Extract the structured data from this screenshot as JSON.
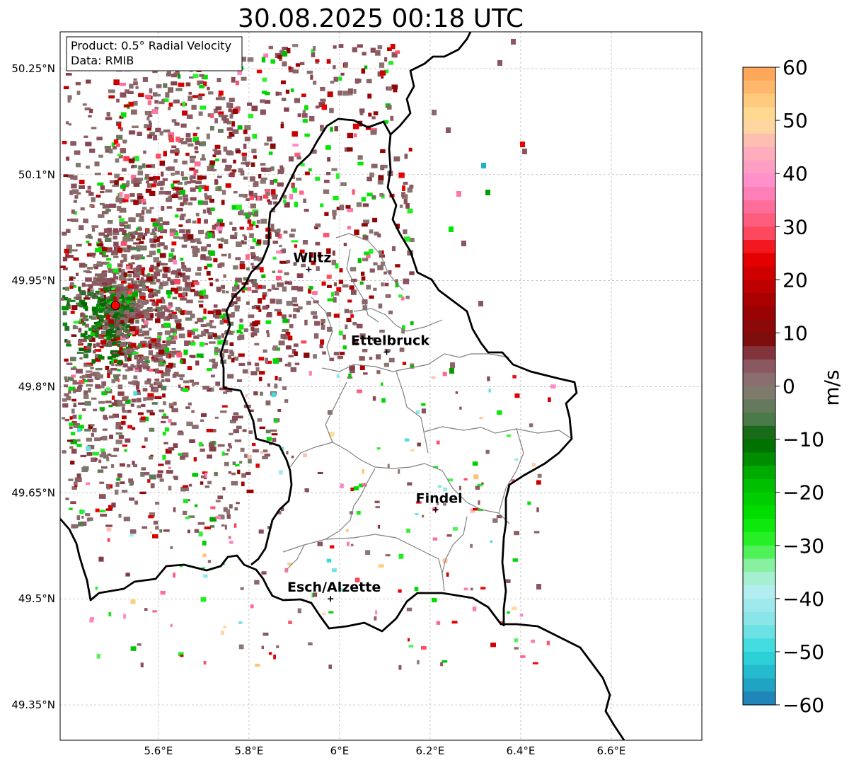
{
  "title": "30.08.2025 00:18 UTC",
  "info_box": {
    "product": "Product: 0.5° Radial Velocity",
    "data": "Data: RMIB"
  },
  "lat_ticks": [
    {
      "value": 50.25,
      "label": "50.25°N"
    },
    {
      "value": 50.1,
      "label": "50.1°N"
    },
    {
      "value": 49.95,
      "label": "49.95°N"
    },
    {
      "value": 49.8,
      "label": "49.8°N"
    },
    {
      "value": 49.65,
      "label": "49.65°N"
    },
    {
      "value": 49.5,
      "label": "49.5°N"
    },
    {
      "value": 49.35,
      "label": "49.35°N"
    }
  ],
  "lon_ticks": [
    {
      "value": 5.6,
      "label": "5.6°E"
    },
    {
      "value": 5.8,
      "label": "5.8°E"
    },
    {
      "value": 6.0,
      "label": "6°E"
    },
    {
      "value": 6.2,
      "label": "6.2°E"
    },
    {
      "value": 6.4,
      "label": "6.4°E"
    },
    {
      "value": 6.6,
      "label": "6.6°E"
    }
  ],
  "extent": {
    "lon_min": 5.383,
    "lon_max": 6.8,
    "lat_min": 49.3,
    "lat_max": 50.302
  },
  "cities": [
    {
      "name": "Wiltz",
      "lon": 5.932,
      "lat": 49.966
    },
    {
      "name": "Ettelbruck",
      "lon": 6.104,
      "lat": 49.849
    },
    {
      "name": "Findel",
      "lon": 6.212,
      "lat": 49.626
    },
    {
      "name": "Esch/Alzette",
      "lon": 5.98,
      "lat": 49.5
    }
  ],
  "radar_site": {
    "lon": 5.505,
    "lat": 49.915,
    "color": "#ff0000"
  },
  "colorbar": {
    "unit": "m/s",
    "min": -60,
    "max": 60,
    "ticks": [
      {
        "value": 60,
        "label": "60"
      },
      {
        "value": 50,
        "label": "50"
      },
      {
        "value": 40,
        "label": "40"
      },
      {
        "value": 30,
        "label": "30"
      },
      {
        "value": 20,
        "label": "20"
      },
      {
        "value": 10,
        "label": "10"
      },
      {
        "value": 0,
        "label": "0"
      },
      {
        "value": -10,
        "label": "−10"
      },
      {
        "value": -20,
        "label": "−20"
      },
      {
        "value": -30,
        "label": "−30"
      },
      {
        "value": -40,
        "label": "−40"
      },
      {
        "value": -50,
        "label": "−50"
      },
      {
        "value": -60,
        "label": "−60"
      }
    ],
    "stops": [
      {
        "value": -60,
        "color": "#1f78b4"
      },
      {
        "value": -55,
        "color": "#21b1c9"
      },
      {
        "value": -50,
        "color": "#2fd9dc"
      },
      {
        "value": -45,
        "color": "#7fe3e6"
      },
      {
        "value": -38,
        "color": "#b9eef0"
      },
      {
        "value": -34,
        "color": "#8ef0a8"
      },
      {
        "value": -30,
        "color": "#33f233"
      },
      {
        "value": -25,
        "color": "#00e600"
      },
      {
        "value": -17,
        "color": "#00b300"
      },
      {
        "value": -10,
        "color": "#006400"
      },
      {
        "value": -6,
        "color": "#4f7a4f"
      },
      {
        "value": 0,
        "color": "#8a7a74"
      },
      {
        "value": 5,
        "color": "#8a4d5a"
      },
      {
        "value": 8,
        "color": "#7a1010"
      },
      {
        "value": 15,
        "color": "#a00000"
      },
      {
        "value": 25,
        "color": "#ee0000"
      },
      {
        "value": 29,
        "color": "#ff4d64"
      },
      {
        "value": 38,
        "color": "#ff8ccc"
      },
      {
        "value": 45,
        "color": "#ffb3b8"
      },
      {
        "value": 50,
        "color": "#ffe199"
      },
      {
        "value": 60,
        "color": "#ffa050"
      }
    ]
  },
  "colors": {
    "background": "#ffffff",
    "border": "#000000",
    "admin": "#808080",
    "grid": "#b0b0b0"
  }
}
